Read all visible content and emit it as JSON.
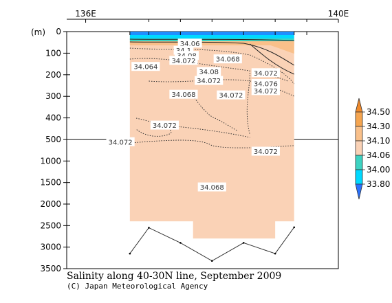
{
  "chart_data": {
    "type": "section_contour",
    "title": "Salinity along 40-30N line, September 2009",
    "credit": "(C) Japan Meteorological Agency",
    "x_axis": {
      "range": [
        135.7,
        140.0
      ],
      "labels": [
        {
          "value": 136.0,
          "text": "136E"
        },
        {
          "value": 140.0,
          "text": "140E"
        }
      ],
      "station_ticks": [
        137.0,
        137.5,
        138.0,
        138.5,
        139.0,
        139.5
      ]
    },
    "y_axis": {
      "unit_label": "(m)",
      "upper": {
        "range": [
          0,
          500
        ],
        "ticks": [
          0,
          100,
          200,
          300,
          400,
          500
        ]
      },
      "lower": {
        "range": [
          500,
          3500
        ],
        "ticks": [
          1000,
          1500,
          2000,
          2500,
          3000,
          3500
        ]
      }
    },
    "legend": {
      "placement": "right",
      "entries": [
        {
          "value": "34.50",
          "color": "#f5a550"
        },
        {
          "value": "34.30",
          "color": "#f9c08a"
        },
        {
          "value": "34.10",
          "color": "#fad2b6"
        },
        {
          "value": "34.06",
          "color": "#3dd3c2"
        },
        {
          "value": "34.00",
          "color": "#00d9ff"
        },
        {
          "value": "33.80",
          "color": "#1f8fff"
        }
      ],
      "low_end_color": "#2a72ff",
      "high_end_color": "#f08a2c"
    },
    "data_region": {
      "x_range": [
        136.7,
        139.3
      ],
      "depth_max": 2400,
      "deep_box_x_range": [
        137.7,
        139.0
      ],
      "deep_box_depth_max": 2800,
      "fill_color": "#fad2b6"
    },
    "bottom_profile": [
      {
        "lon": 136.7,
        "depth": 3150
      },
      {
        "lon": 137.0,
        "depth": 2550
      },
      {
        "lon": 137.5,
        "depth": 2900
      },
      {
        "lon": 138.0,
        "depth": 3320
      },
      {
        "lon": 138.5,
        "depth": 2900
      },
      {
        "lon": 139.0,
        "depth": 3150
      },
      {
        "lon": 139.3,
        "depth": 2540
      }
    ],
    "contour_labels": [
      {
        "text": "34.06",
        "lon": 137.65,
        "depth": 55
      },
      {
        "text": "34.1",
        "lon": 137.55,
        "depth": 88
      },
      {
        "text": "34.08",
        "lon": 137.6,
        "depth": 112
      },
      {
        "text": "34.072",
        "lon": 137.55,
        "depth": 135
      },
      {
        "text": "34.068",
        "lon": 138.25,
        "depth": 128
      },
      {
        "text": "34.064",
        "lon": 136.95,
        "depth": 163
      },
      {
        "text": "34.08",
        "lon": 137.95,
        "depth": 187
      },
      {
        "text": "34.072",
        "lon": 137.95,
        "depth": 228
      },
      {
        "text": "34.072",
        "lon": 138.85,
        "depth": 192
      },
      {
        "text": "34.076",
        "lon": 138.85,
        "depth": 242
      },
      {
        "text": "34.072",
        "lon": 138.85,
        "depth": 275
      },
      {
        "text": "34.068",
        "lon": 137.55,
        "depth": 292
      },
      {
        "text": "34.072",
        "lon": 138.3,
        "depth": 295
      },
      {
        "text": "34.072",
        "lon": 137.25,
        "depth": 435
      },
      {
        "text": "34.072",
        "lon": 136.55,
        "depth": 560
      },
      {
        "text": "34.072",
        "lon": 138.85,
        "depth": 780
      },
      {
        "text": "34.068",
        "lon": 138.0,
        "depth": 1610
      }
    ]
  }
}
